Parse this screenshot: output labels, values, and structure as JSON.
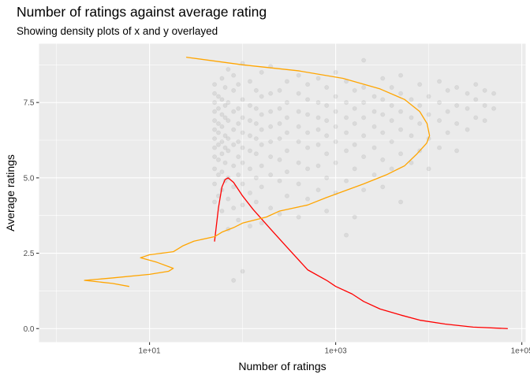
{
  "chart_data": {
    "type": "scatter",
    "title": "Number of ratings against average rating",
    "subtitle": "Showing density plots of x and y overlayed",
    "xlabel": "Number of ratings",
    "ylabel": "Average ratings",
    "x_scale": "log10",
    "xlim": [
      0.65,
      110000
    ],
    "ylim": [
      -0.45,
      9.45
    ],
    "x_ticks": [
      {
        "value": 10,
        "label": "1e+01"
      },
      {
        "value": 1000,
        "label": "1e+03"
      },
      {
        "value": 100000,
        "label": "1e+05"
      }
    ],
    "y_ticks": [
      {
        "value": 0,
        "label": "0.0"
      },
      {
        "value": 2.5,
        "label": "2.5"
      },
      {
        "value": 5,
        "label": "5.0"
      },
      {
        "value": 7.5,
        "label": "7.5"
      }
    ],
    "grid": true,
    "legend": "none",
    "colors": {
      "panel": "#EBEBEB",
      "grid": "#FFFFFF",
      "points": "#000000",
      "x_density": "#FF0000",
      "y_density": "#FFA500"
    },
    "series": [
      {
        "kind": "points",
        "color": "#000000",
        "opacity": 0.07,
        "points": [
          [
            50,
            4.2
          ],
          [
            50,
            4.8
          ],
          [
            50,
            5.3
          ],
          [
            50,
            5.7
          ],
          [
            50,
            6.0
          ],
          [
            50,
            6.3
          ],
          [
            50,
            6.6
          ],
          [
            50,
            6.9
          ],
          [
            50,
            7.2
          ],
          [
            50,
            7.5
          ],
          [
            50,
            7.8
          ],
          [
            50,
            8.1
          ],
          [
            55,
            4.4
          ],
          [
            55,
            5.1
          ],
          [
            55,
            5.6
          ],
          [
            55,
            6.1
          ],
          [
            55,
            6.5
          ],
          [
            55,
            6.8
          ],
          [
            55,
            7.3
          ],
          [
            55,
            7.7
          ],
          [
            60,
            3.9
          ],
          [
            60,
            4.6
          ],
          [
            60,
            5.2
          ],
          [
            60,
            5.8
          ],
          [
            60,
            6.2
          ],
          [
            60,
            6.7
          ],
          [
            60,
            7.1
          ],
          [
            60,
            7.6
          ],
          [
            60,
            8.3
          ],
          [
            65,
            4.9
          ],
          [
            65,
            5.5
          ],
          [
            65,
            6.0
          ],
          [
            65,
            6.4
          ],
          [
            65,
            7.0
          ],
          [
            65,
            7.4
          ],
          [
            65,
            8.0
          ],
          [
            70,
            3.3
          ],
          [
            70,
            4.3
          ],
          [
            70,
            5.0
          ],
          [
            70,
            5.9
          ],
          [
            70,
            6.3
          ],
          [
            70,
            6.9
          ],
          [
            70,
            7.5
          ],
          [
            70,
            8.6
          ],
          [
            80,
            1.6
          ],
          [
            80,
            4.0
          ],
          [
            80,
            4.7
          ],
          [
            80,
            5.4
          ],
          [
            80,
            6.1
          ],
          [
            80,
            6.6
          ],
          [
            80,
            7.2
          ],
          [
            80,
            7.9
          ],
          [
            80,
            8.4
          ],
          [
            90,
            3.6
          ],
          [
            90,
            5.1
          ],
          [
            90,
            5.7
          ],
          [
            90,
            6.2
          ],
          [
            90,
            6.8
          ],
          [
            90,
            7.3
          ],
          [
            90,
            8.1
          ],
          [
            100,
            1.9
          ],
          [
            100,
            4.1
          ],
          [
            100,
            4.8
          ],
          [
            100,
            5.5
          ],
          [
            100,
            6.0
          ],
          [
            100,
            6.5
          ],
          [
            100,
            7.0
          ],
          [
            100,
            7.6
          ],
          [
            100,
            8.8
          ],
          [
            120,
            3.4
          ],
          [
            120,
            4.5
          ],
          [
            120,
            5.3
          ],
          [
            120,
            5.9
          ],
          [
            120,
            6.4
          ],
          [
            120,
            6.9
          ],
          [
            120,
            7.4
          ],
          [
            120,
            8.2
          ],
          [
            140,
            4.2
          ],
          [
            140,
            5.0
          ],
          [
            140,
            5.8
          ],
          [
            140,
            6.3
          ],
          [
            140,
            6.8
          ],
          [
            140,
            7.3
          ],
          [
            140,
            7.9
          ],
          [
            160,
            3.5
          ],
          [
            160,
            4.7
          ],
          [
            160,
            5.4
          ],
          [
            160,
            6.1
          ],
          [
            160,
            6.6
          ],
          [
            160,
            7.1
          ],
          [
            160,
            7.7
          ],
          [
            160,
            8.5
          ],
          [
            200,
            4.0
          ],
          [
            200,
            5.1
          ],
          [
            200,
            5.7
          ],
          [
            200,
            6.2
          ],
          [
            200,
            6.7
          ],
          [
            200,
            7.2
          ],
          [
            200,
            7.8
          ],
          [
            200,
            8.7
          ],
          [
            250,
            3.8
          ],
          [
            250,
            4.9
          ],
          [
            250,
            5.6
          ],
          [
            250,
            6.3
          ],
          [
            250,
            6.8
          ],
          [
            250,
            7.3
          ],
          [
            250,
            7.9
          ],
          [
            300,
            4.4
          ],
          [
            300,
            5.2
          ],
          [
            300,
            5.9
          ],
          [
            300,
            6.5
          ],
          [
            300,
            7.0
          ],
          [
            300,
            7.5
          ],
          [
            300,
            8.2
          ],
          [
            400,
            3.7
          ],
          [
            400,
            4.8
          ],
          [
            400,
            5.5
          ],
          [
            400,
            6.2
          ],
          [
            400,
            6.7
          ],
          [
            400,
            7.2
          ],
          [
            400,
            7.8
          ],
          [
            400,
            8.4
          ],
          [
            500,
            4.3
          ],
          [
            500,
            5.3
          ],
          [
            500,
            6.0
          ],
          [
            500,
            6.5
          ],
          [
            500,
            7.1
          ],
          [
            500,
            7.6
          ],
          [
            500,
            8.1
          ],
          [
            650,
            4.6
          ],
          [
            650,
            5.4
          ],
          [
            650,
            6.1
          ],
          [
            650,
            6.6
          ],
          [
            650,
            7.0
          ],
          [
            650,
            7.5
          ],
          [
            650,
            8.3
          ],
          [
            800,
            3.9
          ],
          [
            800,
            5.0
          ],
          [
            800,
            5.8
          ],
          [
            800,
            6.4
          ],
          [
            800,
            6.9
          ],
          [
            800,
            7.4
          ],
          [
            800,
            8.0
          ],
          [
            1000,
            4.5
          ],
          [
            1000,
            5.5
          ],
          [
            1000,
            6.2
          ],
          [
            1000,
            6.7
          ],
          [
            1000,
            7.2
          ],
          [
            1000,
            7.7
          ],
          [
            1000,
            8.5
          ],
          [
            1300,
            3.1
          ],
          [
            1300,
            4.9
          ],
          [
            1300,
            5.9
          ],
          [
            1300,
            6.5
          ],
          [
            1300,
            7.0
          ],
          [
            1300,
            7.5
          ],
          [
            1300,
            8.2
          ],
          [
            1600,
            3.7
          ],
          [
            1600,
            5.3
          ],
          [
            1600,
            6.1
          ],
          [
            1600,
            6.8
          ],
          [
            1600,
            7.3
          ],
          [
            1600,
            7.9
          ],
          [
            2000,
            4.6
          ],
          [
            2000,
            5.7
          ],
          [
            2000,
            6.4
          ],
          [
            2000,
            7.0
          ],
          [
            2000,
            7.5
          ],
          [
            2000,
            8.0
          ],
          [
            2000,
            8.9
          ],
          [
            2600,
            5.1
          ],
          [
            2600,
            6.0
          ],
          [
            2600,
            6.7
          ],
          [
            2600,
            7.2
          ],
          [
            2600,
            7.7
          ],
          [
            3200,
            4.7
          ],
          [
            3200,
            5.6
          ],
          [
            3200,
            6.5
          ],
          [
            3200,
            7.1
          ],
          [
            3200,
            7.6
          ],
          [
            3200,
            8.3
          ],
          [
            4000,
            5.3
          ],
          [
            4000,
            6.2
          ],
          [
            4000,
            6.9
          ],
          [
            4000,
            7.4
          ],
          [
            4000,
            8.0
          ],
          [
            5000,
            4.2
          ],
          [
            5000,
            5.8
          ],
          [
            5000,
            6.6
          ],
          [
            5000,
            7.2
          ],
          [
            5000,
            7.8
          ],
          [
            5000,
            8.4
          ],
          [
            6500,
            5.5
          ],
          [
            6500,
            6.4
          ],
          [
            6500,
            7.0
          ],
          [
            6500,
            7.6
          ],
          [
            8000,
            5.9
          ],
          [
            8000,
            6.8
          ],
          [
            8000,
            7.4
          ],
          [
            8000,
            8.1
          ],
          [
            10000,
            5.3
          ],
          [
            10000,
            6.3
          ],
          [
            10000,
            7.1
          ],
          [
            10000,
            7.7
          ],
          [
            13000,
            6.0
          ],
          [
            13000,
            6.9
          ],
          [
            13000,
            7.5
          ],
          [
            13000,
            8.2
          ],
          [
            16000,
            6.5
          ],
          [
            16000,
            7.2
          ],
          [
            16000,
            7.9
          ],
          [
            20000,
            5.9
          ],
          [
            20000,
            6.8
          ],
          [
            20000,
            7.4
          ],
          [
            20000,
            8.0
          ],
          [
            26000,
            6.6
          ],
          [
            26000,
            7.3
          ],
          [
            26000,
            7.8
          ],
          [
            32000,
            7.0
          ],
          [
            32000,
            7.6
          ],
          [
            32000,
            8.1
          ],
          [
            40000,
            6.9
          ],
          [
            40000,
            7.4
          ],
          [
            40000,
            7.9
          ],
          [
            50000,
            7.3
          ],
          [
            50000,
            7.8
          ]
        ]
      },
      {
        "name": "",
        "kind": "x-density",
        "color": "#FF0000",
        "points": [
          [
            50,
            2.9
          ],
          [
            55,
            4.0
          ],
          [
            60,
            4.7
          ],
          [
            65,
            4.95
          ],
          [
            70,
            5.0
          ],
          [
            80,
            4.85
          ],
          [
            100,
            4.4
          ],
          [
            130,
            3.95
          ],
          [
            200,
            3.3
          ],
          [
            300,
            2.7
          ],
          [
            500,
            1.95
          ],
          [
            800,
            1.6
          ],
          [
            1000,
            1.4
          ],
          [
            1500,
            1.15
          ],
          [
            2000,
            0.9
          ],
          [
            3000,
            0.65
          ],
          [
            5000,
            0.45
          ],
          [
            8000,
            0.28
          ],
          [
            15000,
            0.15
          ],
          [
            30000,
            0.05
          ],
          [
            70000,
            0.0
          ]
        ]
      },
      {
        "name": "",
        "kind": "y-density",
        "color": "#FFA500",
        "points": [
          [
            6,
            1.4
          ],
          [
            4,
            1.5
          ],
          [
            2,
            1.6
          ],
          [
            4,
            1.68
          ],
          [
            10,
            1.8
          ],
          [
            16,
            1.9
          ],
          [
            18,
            2.0
          ],
          [
            12,
            2.2
          ],
          [
            8,
            2.35
          ],
          [
            10,
            2.45
          ],
          [
            18,
            2.55
          ],
          [
            23,
            2.75
          ],
          [
            30,
            2.9
          ],
          [
            50,
            3.05
          ],
          [
            60,
            3.2
          ],
          [
            80,
            3.35
          ],
          [
            100,
            3.5
          ],
          [
            180,
            3.7
          ],
          [
            250,
            3.9
          ],
          [
            500,
            4.1
          ],
          [
            800,
            4.35
          ],
          [
            1200,
            4.55
          ],
          [
            2000,
            4.8
          ],
          [
            3500,
            5.1
          ],
          [
            5500,
            5.4
          ],
          [
            7500,
            5.8
          ],
          [
            9500,
            6.15
          ],
          [
            10200,
            6.4
          ],
          [
            9600,
            6.8
          ],
          [
            8000,
            7.2
          ],
          [
            5500,
            7.6
          ],
          [
            3000,
            7.95
          ],
          [
            1200,
            8.3
          ],
          [
            400,
            8.55
          ],
          [
            100,
            8.75
          ],
          [
            25,
            9.0
          ]
        ]
      }
    ]
  }
}
